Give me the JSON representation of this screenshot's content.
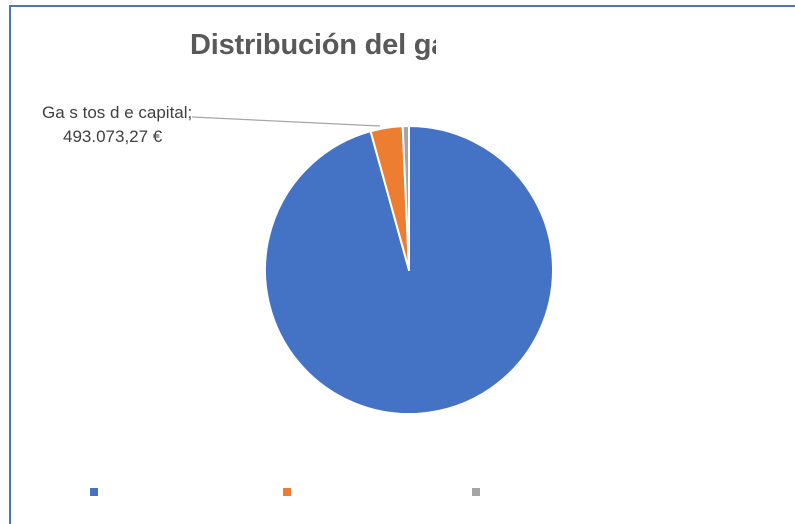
{
  "chart_data": {
    "type": "pie",
    "title": "Distribución del gas",
    "series": [
      {
        "values": [
          95.7,
          3.6,
          0.7
        ],
        "colors": [
          "#4472c4",
          "#ed7d31",
          "#a5a5a5"
        ]
      }
    ],
    "data_labels": [
      {
        "index": 1,
        "name": "Ga s tos d e capital;",
        "value": "493.073,27 €"
      }
    ],
    "legend": {
      "position": "bottom",
      "colors": [
        "#4472c4",
        "#ed7d31",
        "#a5a5a5"
      ]
    }
  },
  "colors": {
    "frame": "#4a78b5",
    "title": "#595959",
    "label_text": "#404040",
    "leader_line": "#a6a6a6"
  }
}
